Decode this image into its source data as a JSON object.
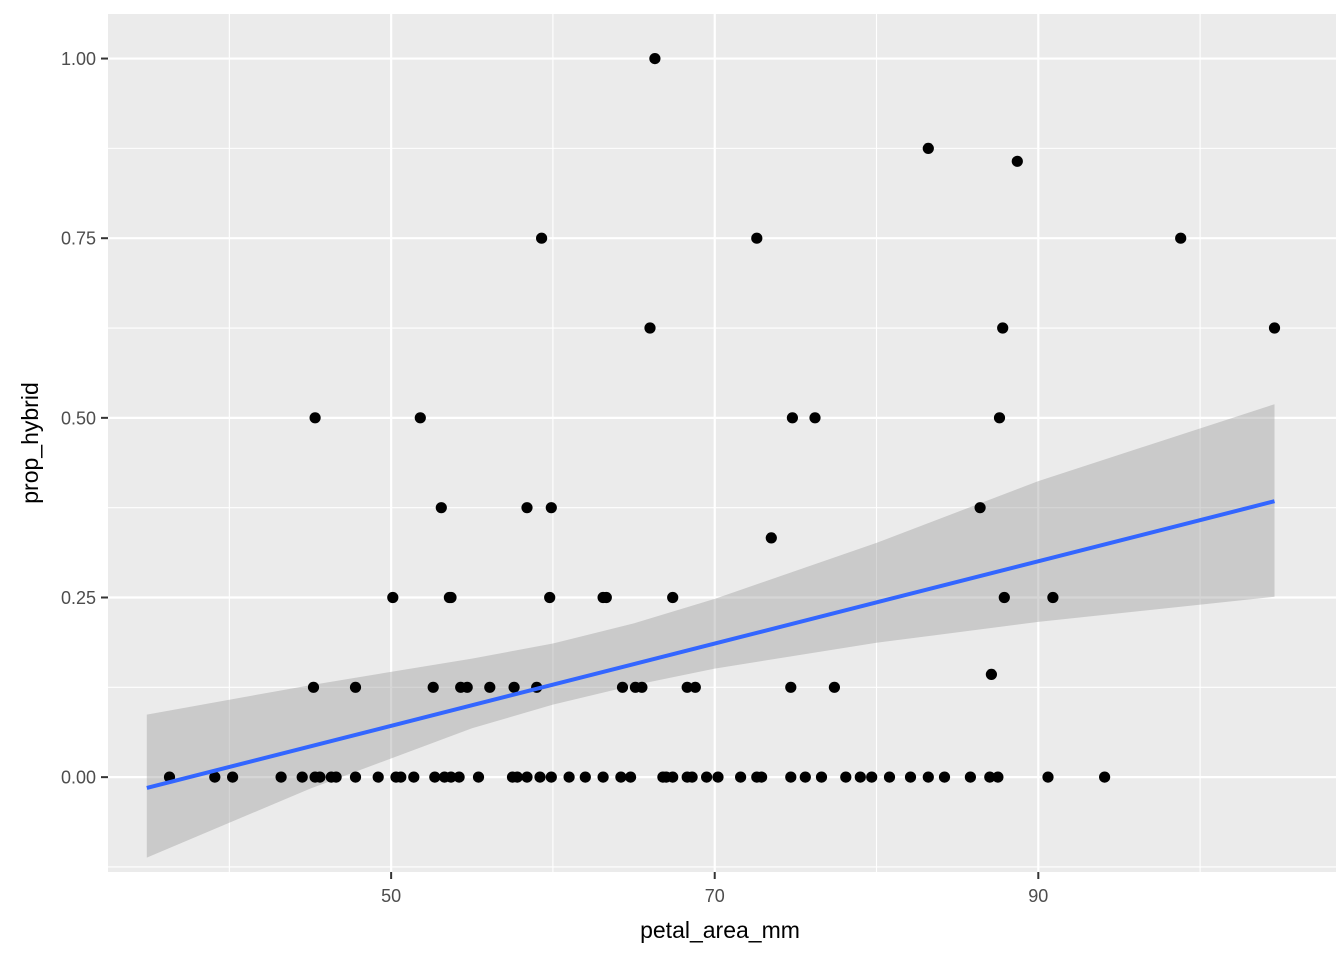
{
  "chart_data": {
    "type": "scatter",
    "title": "",
    "xlabel": "petal_area_mm",
    "ylabel": "prop_hybrid",
    "xlim": [
      32.5,
      108.4
    ],
    "ylim": [
      -0.132,
      1.062
    ],
    "x_ticks": [
      50,
      70,
      90
    ],
    "x_tick_labels": [
      "50",
      "70",
      "90"
    ],
    "y_ticks": [
      0,
      0.25,
      0.5,
      0.75,
      1.0
    ],
    "y_tick_labels": [
      "0.00",
      "0.25",
      "0.50",
      "0.75",
      "1.00"
    ],
    "grid": true,
    "legend": "none",
    "colors": {
      "panel": "#EBEBEB",
      "grid": "#FFFFFF",
      "points": "#000000",
      "fit_line": "#3366FF",
      "ribbon": "#999999"
    },
    "points": [
      [
        36.3,
        0
      ],
      [
        39.1,
        0
      ],
      [
        40.2,
        0
      ],
      [
        43.2,
        0
      ],
      [
        44.5,
        0
      ],
      [
        45.3,
        0
      ],
      [
        45.6,
        0
      ],
      [
        46.3,
        0
      ],
      [
        46.6,
        0
      ],
      [
        47.8,
        0
      ],
      [
        49.2,
        0
      ],
      [
        50.3,
        0
      ],
      [
        50.6,
        0
      ],
      [
        51.4,
        0
      ],
      [
        52.7,
        0
      ],
      [
        53.3,
        0
      ],
      [
        53.7,
        0
      ],
      [
        54.2,
        0
      ],
      [
        55.4,
        0
      ],
      [
        57.5,
        0
      ],
      [
        57.8,
        0
      ],
      [
        58.4,
        0
      ],
      [
        59.2,
        0
      ],
      [
        59.9,
        0
      ],
      [
        61.0,
        0
      ],
      [
        62.0,
        0
      ],
      [
        63.1,
        0
      ],
      [
        64.2,
        0
      ],
      [
        64.8,
        0
      ],
      [
        66.8,
        0
      ],
      [
        67.0,
        0
      ],
      [
        67.4,
        0
      ],
      [
        68.3,
        0
      ],
      [
        68.6,
        0
      ],
      [
        69.5,
        0
      ],
      [
        70.2,
        0
      ],
      [
        71.6,
        0
      ],
      [
        72.6,
        0
      ],
      [
        72.9,
        0
      ],
      [
        74.7,
        0
      ],
      [
        75.6,
        0
      ],
      [
        76.6,
        0
      ],
      [
        78.1,
        0
      ],
      [
        79.0,
        0
      ],
      [
        79.7,
        0
      ],
      [
        80.8,
        0
      ],
      [
        82.1,
        0
      ],
      [
        83.2,
        0
      ],
      [
        84.2,
        0
      ],
      [
        85.8,
        0
      ],
      [
        87.0,
        0
      ],
      [
        87.5,
        0
      ],
      [
        90.6,
        0
      ],
      [
        94.1,
        0
      ],
      [
        45.2,
        0.125
      ],
      [
        47.8,
        0.125
      ],
      [
        52.6,
        0.125
      ],
      [
        54.3,
        0.125
      ],
      [
        54.7,
        0.125
      ],
      [
        56.1,
        0.125
      ],
      [
        57.6,
        0.125
      ],
      [
        59.0,
        0.125
      ],
      [
        64.3,
        0.125
      ],
      [
        65.1,
        0.125
      ],
      [
        65.5,
        0.125
      ],
      [
        68.3,
        0.125
      ],
      [
        68.8,
        0.125
      ],
      [
        74.7,
        0.125
      ],
      [
        77.4,
        0.125
      ],
      [
        87.1,
        0.143
      ],
      [
        50.1,
        0.25
      ],
      [
        53.6,
        0.25
      ],
      [
        53.7,
        0.25
      ],
      [
        59.8,
        0.25
      ],
      [
        63.1,
        0.25
      ],
      [
        63.3,
        0.25
      ],
      [
        67.4,
        0.25
      ],
      [
        87.9,
        0.25
      ],
      [
        90.9,
        0.25
      ],
      [
        73.5,
        0.333
      ],
      [
        53.1,
        0.375
      ],
      [
        58.4,
        0.375
      ],
      [
        59.9,
        0.375
      ],
      [
        86.4,
        0.375
      ],
      [
        45.3,
        0.5
      ],
      [
        51.8,
        0.5
      ],
      [
        74.8,
        0.5
      ],
      [
        76.2,
        0.5
      ],
      [
        87.6,
        0.5
      ],
      [
        66.0,
        0.625
      ],
      [
        87.8,
        0.625
      ],
      [
        104.6,
        0.625
      ],
      [
        59.3,
        0.75
      ],
      [
        72.6,
        0.75
      ],
      [
        98.8,
        0.75
      ],
      [
        88.7,
        0.857
      ],
      [
        83.2,
        0.875
      ],
      [
        66.3,
        1.0
      ]
    ],
    "fit_line": {
      "method": "lm",
      "x": [
        34.9,
        104.6
      ],
      "y": [
        -0.015,
        0.384
      ]
    },
    "confidence_band": [
      {
        "x": 34.9,
        "lower": -0.112,
        "upper": 0.087
      },
      {
        "x": 45.0,
        "lower": -0.016,
        "upper": 0.128
      },
      {
        "x": 55.0,
        "lower": 0.068,
        "upper": 0.165
      },
      {
        "x": 60.0,
        "lower": 0.101,
        "upper": 0.186
      },
      {
        "x": 65.0,
        "lower": 0.128,
        "upper": 0.214
      },
      {
        "x": 70.0,
        "lower": 0.151,
        "upper": 0.248
      },
      {
        "x": 80.0,
        "lower": 0.187,
        "upper": 0.326
      },
      {
        "x": 90.0,
        "lower": 0.216,
        "upper": 0.412
      },
      {
        "x": 104.6,
        "lower": 0.251,
        "upper": 0.519
      }
    ]
  }
}
